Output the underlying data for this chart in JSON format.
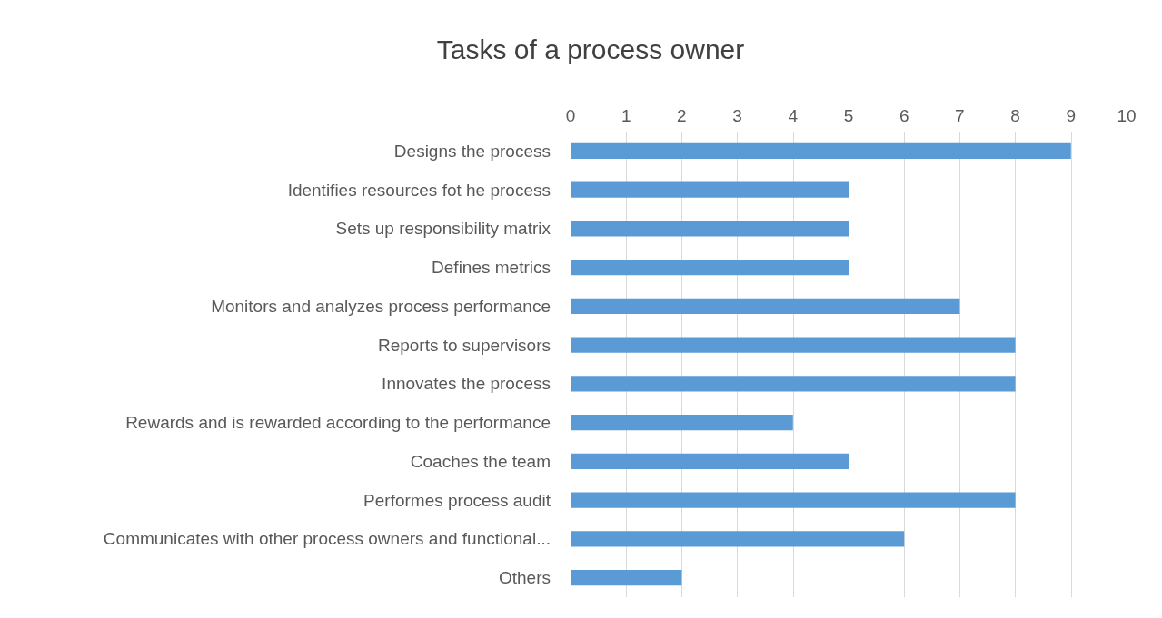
{
  "chart_data": {
    "type": "bar",
    "orientation": "horizontal",
    "title": "Tasks of a process owner",
    "categories": [
      "Designs the process",
      "Identifies resources fot he process",
      "Sets up responsibility matrix",
      "Defines metrics",
      "Monitors and analyzes process performance",
      "Reports to supervisors",
      "Innovates the process",
      "Rewards and is rewarded according to the performance",
      "Coaches the team",
      "Performes process audit",
      "Communicates with other process owners and functional...",
      "Others"
    ],
    "values": [
      9,
      5,
      5,
      5,
      7,
      8,
      8,
      4,
      5,
      8,
      6,
      2
    ],
    "color": "#5b9bd5",
    "xlim": [
      0,
      10
    ],
    "xticks": [
      0,
      1,
      2,
      3,
      4,
      5,
      6,
      7,
      8,
      9,
      10
    ],
    "grid": "x"
  }
}
